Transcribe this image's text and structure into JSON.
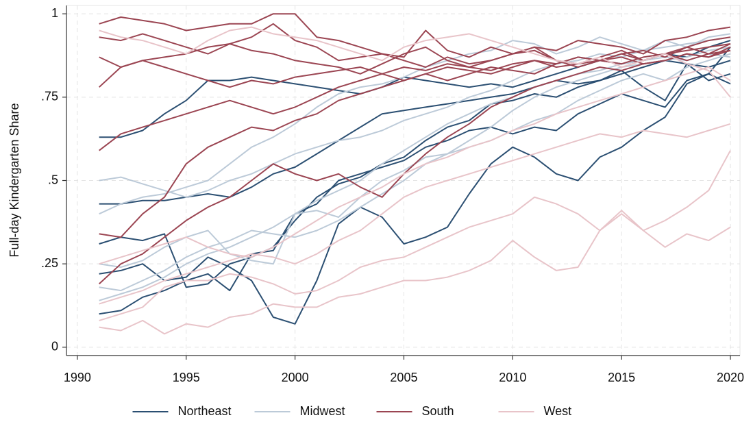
{
  "chart_data": {
    "type": "line",
    "y_label": "Full-day Kindergarten Share",
    "x": [
      1991,
      1992,
      1993,
      1994,
      1995,
      1996,
      1997,
      1998,
      1999,
      2000,
      2001,
      2002,
      2003,
      2004,
      2005,
      2006,
      2007,
      2008,
      2009,
      2010,
      2011,
      2012,
      2013,
      2014,
      2015,
      2016,
      2017,
      2018,
      2019,
      2020
    ],
    "xlim": [
      1989.5,
      2020.44
    ],
    "xticks": [
      1990,
      1995,
      2000,
      2005,
      2010,
      2015,
      2020
    ],
    "ylim": [
      -0.025,
      1.025
    ],
    "yticks": [
      {
        "value": 0,
        "label": "0"
      },
      {
        "value": 0.25,
        "label": ".25"
      },
      {
        "value": 0.5,
        "label": ".5"
      },
      {
        "value": 0.75,
        "label": ".75"
      },
      {
        "value": 1,
        "label": "1"
      }
    ],
    "grid": true,
    "legend": "bottom",
    "series": [
      {
        "name": "Northeast",
        "color": "#2b4f72",
        "values": [
          [
            0.63,
            0.63,
            0.65,
            0.7,
            0.74,
            0.8,
            0.8,
            0.81,
            0.8,
            0.79,
            0.78,
            0.77,
            0.76,
            0.78,
            0.81,
            0.8,
            0.79,
            0.78,
            0.79,
            0.78,
            0.8,
            0.82,
            0.84,
            0.86,
            0.85,
            0.86,
            0.88,
            0.87,
            0.9,
            0.92
          ],
          [
            0.43,
            0.43,
            0.44,
            0.44,
            0.45,
            0.46,
            0.45,
            0.48,
            0.52,
            0.54,
            0.58,
            0.62,
            0.66,
            0.7,
            0.71,
            0.72,
            0.73,
            0.74,
            0.75,
            0.76,
            0.78,
            0.8,
            0.79,
            0.8,
            0.82,
            0.84,
            0.86,
            0.85,
            0.84,
            0.86
          ],
          [
            0.1,
            0.11,
            0.15,
            0.17,
            0.2,
            0.22,
            0.17,
            0.28,
            0.29,
            0.4,
            0.43,
            0.5,
            0.52,
            0.54,
            0.56,
            0.6,
            0.62,
            0.65,
            0.66,
            0.64,
            0.66,
            0.65,
            0.7,
            0.73,
            0.76,
            0.74,
            0.72,
            0.8,
            0.82,
            0.9
          ],
          [
            0.22,
            0.23,
            0.25,
            0.2,
            0.21,
            0.27,
            0.24,
            0.2,
            0.09,
            0.07,
            0.2,
            0.37,
            0.42,
            0.39,
            0.31,
            0.33,
            0.36,
            0.46,
            0.55,
            0.6,
            0.57,
            0.52,
            0.5,
            0.57,
            0.6,
            0.65,
            0.69,
            0.79,
            0.82,
            0.79
          ],
          [
            0.31,
            0.33,
            0.32,
            0.34,
            0.18,
            0.19,
            0.25,
            0.27,
            0.3,
            0.38,
            0.45,
            0.49,
            0.51,
            0.55,
            0.57,
            0.62,
            0.66,
            0.68,
            0.73,
            0.74,
            0.76,
            0.75,
            0.78,
            0.8,
            0.83,
            0.78,
            0.74,
            0.85,
            0.8,
            0.82
          ]
        ]
      },
      {
        "name": "Midwest",
        "color": "#bccad8",
        "values": [
          [
            0.4,
            0.43,
            0.45,
            0.46,
            0.48,
            0.5,
            0.55,
            0.6,
            0.63,
            0.67,
            0.72,
            0.76,
            0.78,
            0.79,
            0.81,
            0.84,
            0.86,
            0.88,
            0.89,
            0.92,
            0.91,
            0.88,
            0.9,
            0.93,
            0.91,
            0.89,
            0.92,
            0.9,
            0.93,
            0.94
          ],
          [
            0.14,
            0.16,
            0.18,
            0.21,
            0.25,
            0.28,
            0.3,
            0.33,
            0.36,
            0.4,
            0.44,
            0.47,
            0.5,
            0.55,
            0.59,
            0.63,
            0.67,
            0.7,
            0.73,
            0.75,
            0.78,
            0.8,
            0.82,
            0.83,
            0.85,
            0.86,
            0.87,
            0.86,
            0.88,
            0.87
          ],
          [
            0.25,
            0.24,
            0.26,
            0.3,
            0.33,
            0.35,
            0.28,
            0.26,
            0.25,
            0.4,
            0.41,
            0.39,
            0.45,
            0.5,
            0.53,
            0.57,
            0.58,
            0.6,
            0.62,
            0.65,
            0.68,
            0.7,
            0.74,
            0.77,
            0.8,
            0.82,
            0.8,
            0.84,
            0.86,
            0.88
          ],
          [
            0.5,
            0.51,
            0.49,
            0.47,
            0.45,
            0.47,
            0.5,
            0.52,
            0.55,
            0.58,
            0.6,
            0.62,
            0.63,
            0.65,
            0.68,
            0.7,
            0.72,
            0.75,
            0.77,
            0.8,
            0.83,
            0.85,
            0.86,
            0.88,
            0.87,
            0.89,
            0.9,
            0.91,
            0.92,
            0.93
          ],
          [
            0.18,
            0.17,
            0.2,
            0.23,
            0.27,
            0.3,
            0.32,
            0.35,
            0.34,
            0.33,
            0.35,
            0.38,
            0.42,
            0.46,
            0.5,
            0.55,
            0.58,
            0.62,
            0.66,
            0.71,
            0.75,
            0.78,
            0.8,
            0.82,
            0.84,
            0.85,
            0.86,
            0.87,
            0.89,
            0.9
          ]
        ]
      },
      {
        "name": "South",
        "color": "#9b4552",
        "values": [
          [
            0.97,
            0.99,
            0.98,
            0.97,
            0.95,
            0.96,
            0.97,
            0.97,
            1.0,
            1.0,
            0.93,
            0.92,
            0.9,
            0.88,
            0.87,
            0.95,
            0.89,
            0.87,
            0.9,
            0.88,
            0.9,
            0.89,
            0.92,
            0.91,
            0.9,
            0.88,
            0.92,
            0.93,
            0.95,
            0.96
          ],
          [
            0.93,
            0.92,
            0.94,
            0.92,
            0.9,
            0.88,
            0.91,
            0.93,
            0.97,
            0.92,
            0.9,
            0.86,
            0.87,
            0.88,
            0.86,
            0.84,
            0.87,
            0.85,
            0.86,
            0.88,
            0.9,
            0.86,
            0.85,
            0.87,
            0.89,
            0.86,
            0.88,
            0.9,
            0.92,
            0.93
          ],
          [
            0.87,
            0.84,
            0.86,
            0.87,
            0.88,
            0.9,
            0.91,
            0.89,
            0.88,
            0.86,
            0.85,
            0.84,
            0.82,
            0.85,
            0.88,
            0.9,
            0.86,
            0.84,
            0.86,
            0.88,
            0.89,
            0.86,
            0.84,
            0.86,
            0.88,
            0.89,
            0.87,
            0.9,
            0.88,
            0.91
          ],
          [
            0.78,
            0.84,
            0.86,
            0.84,
            0.82,
            0.8,
            0.78,
            0.8,
            0.79,
            0.81,
            0.82,
            0.83,
            0.84,
            0.82,
            0.8,
            0.82,
            0.84,
            0.83,
            0.82,
            0.84,
            0.86,
            0.85,
            0.87,
            0.86,
            0.85,
            0.87,
            0.88,
            0.86,
            0.88,
            0.89
          ],
          [
            0.59,
            0.64,
            0.66,
            0.68,
            0.7,
            0.72,
            0.74,
            0.72,
            0.7,
            0.72,
            0.75,
            0.78,
            0.8,
            0.82,
            0.84,
            0.83,
            0.85,
            0.84,
            0.83,
            0.85,
            0.86,
            0.84,
            0.85,
            0.86,
            0.87,
            0.85,
            0.86,
            0.88,
            0.87,
            0.89
          ],
          [
            0.34,
            0.33,
            0.4,
            0.45,
            0.55,
            0.6,
            0.63,
            0.66,
            0.65,
            0.68,
            0.7,
            0.74,
            0.76,
            0.78,
            0.8,
            0.82,
            0.8,
            0.82,
            0.84,
            0.83,
            0.82,
            0.85,
            0.87,
            0.86,
            0.88,
            0.86,
            0.88,
            0.89,
            0.9,
            0.91
          ],
          [
            0.19,
            0.25,
            0.28,
            0.33,
            0.38,
            0.42,
            0.45,
            0.5,
            0.55,
            0.52,
            0.5,
            0.52,
            0.48,
            0.45,
            0.52,
            0.58,
            0.63,
            0.67,
            0.72,
            0.75,
            0.78,
            0.8,
            0.82,
            0.84,
            0.83,
            0.85,
            0.86,
            0.88,
            0.87,
            0.9
          ]
        ]
      },
      {
        "name": "West",
        "color": "#e8c4c9",
        "values": [
          [
            0.06,
            0.05,
            0.08,
            0.04,
            0.07,
            0.06,
            0.09,
            0.1,
            0.13,
            0.12,
            0.12,
            0.15,
            0.16,
            0.18,
            0.2,
            0.2,
            0.21,
            0.23,
            0.26,
            0.32,
            0.27,
            0.23,
            0.24,
            0.35,
            0.4,
            0.35,
            0.3,
            0.34,
            0.32,
            0.36
          ],
          [
            0.08,
            0.1,
            0.12,
            0.18,
            0.2,
            0.2,
            0.22,
            0.21,
            0.19,
            0.16,
            0.17,
            0.2,
            0.24,
            0.26,
            0.27,
            0.3,
            0.33,
            0.36,
            0.38,
            0.4,
            0.45,
            0.43,
            0.4,
            0.35,
            0.41,
            0.35,
            0.38,
            0.42,
            0.47,
            0.59
          ],
          [
            0.13,
            0.15,
            0.17,
            0.2,
            0.22,
            0.24,
            0.26,
            0.28,
            0.27,
            0.25,
            0.28,
            0.32,
            0.35,
            0.4,
            0.45,
            0.48,
            0.5,
            0.52,
            0.54,
            0.56,
            0.58,
            0.6,
            0.62,
            0.64,
            0.63,
            0.65,
            0.64,
            0.63,
            0.65,
            0.67
          ],
          [
            0.95,
            0.93,
            0.92,
            0.9,
            0.88,
            0.92,
            0.95,
            0.96,
            0.94,
            0.93,
            0.92,
            0.9,
            0.88,
            0.86,
            0.9,
            0.92,
            0.93,
            0.94,
            0.92,
            0.9,
            0.88,
            0.86,
            0.85,
            0.87,
            0.84,
            0.86,
            0.88,
            0.85,
            0.83,
            0.75
          ],
          [
            0.25,
            0.27,
            0.29,
            0.31,
            0.33,
            0.3,
            0.28,
            0.27,
            0.3,
            0.34,
            0.38,
            0.42,
            0.45,
            0.48,
            0.52,
            0.55,
            0.57,
            0.6,
            0.62,
            0.65,
            0.67,
            0.7,
            0.72,
            0.74,
            0.76,
            0.78,
            0.8,
            0.82,
            0.84,
            0.8
          ]
        ]
      }
    ]
  }
}
